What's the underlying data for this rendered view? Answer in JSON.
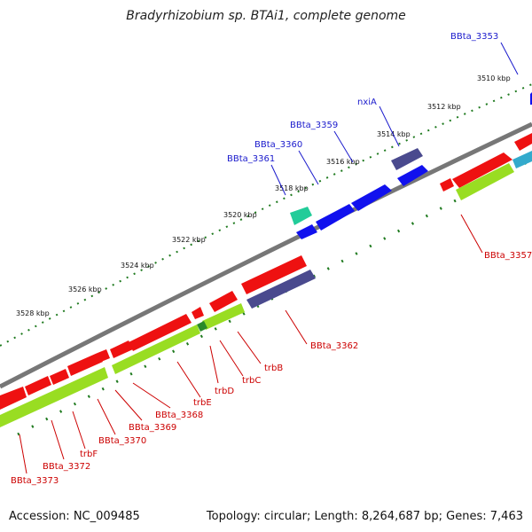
{
  "header": {
    "title": "Bradyrhizobium sp. BTAi1, complete genome"
  },
  "footer": {
    "accession": "Accession: NC_009485",
    "summary": "Topology: circular; Length: 8,264,687 bp; Genes: 7,463"
  },
  "colors": {
    "forward_gene": "#ee1111",
    "reverse_gene": "#1111ee",
    "rna": "#99dd22",
    "purple_gene": "#4a4a8e",
    "teal_gene": "#22cc99",
    "backbone": "#777777",
    "tick": "#1f7a1f",
    "blue_label": "#1a1acc",
    "red_label": "#cc0000"
  },
  "tick_labels": [
    "3510 kbp",
    "3512 kbp",
    "3514 kbp",
    "3516 kbp",
    "3518 kbp",
    "3520 kbp",
    "3522 kbp",
    "3524 kbp",
    "3526 kbp",
    "3528 kbp"
  ],
  "gene_labels_top": [
    "BBta_3353",
    "nxiA",
    "BBta_3359",
    "BBta_3360",
    "BBta_3361"
  ],
  "gene_labels_bottom": [
    "BBta_3357",
    "BBta_3362",
    "trbB",
    "trbC",
    "trbD",
    "trbE",
    "BBta_3368",
    "BBta_3369",
    "BBta_3370",
    "trbF",
    "BBta_3372",
    "BBta_3373"
  ]
}
